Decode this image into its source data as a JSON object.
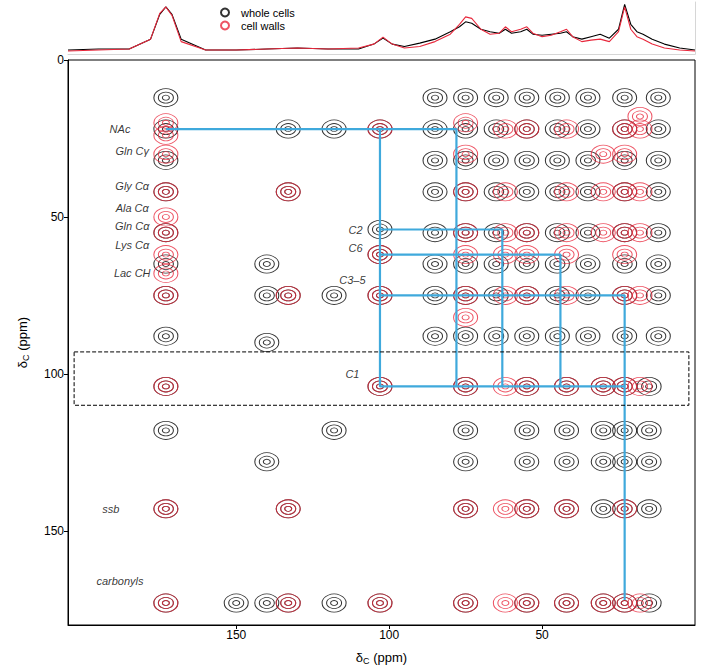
{
  "chart_data": [
    {
      "type": "line",
      "x": [
        205,
        195,
        185,
        178,
        175,
        173,
        171,
        168,
        160,
        150,
        140,
        130,
        120,
        110,
        105,
        102,
        99,
        95,
        90,
        85,
        80,
        77,
        75,
        73,
        70,
        67,
        64,
        62,
        60,
        57,
        55,
        53,
        50,
        47,
        44,
        42,
        40,
        37,
        34,
        31,
        28,
        25,
        23,
        21,
        19,
        17,
        14,
        10,
        5,
        0
      ],
      "series": [
        {
          "name": "whole cells",
          "color": "#000000",
          "values": [
            0.08,
            0.1,
            0.1,
            0.3,
            0.8,
            0.95,
            0.8,
            0.3,
            0.08,
            0.08,
            0.1,
            0.12,
            0.1,
            0.1,
            0.2,
            0.32,
            0.2,
            0.15,
            0.22,
            0.3,
            0.45,
            0.55,
            0.65,
            0.62,
            0.5,
            0.45,
            0.42,
            0.5,
            0.42,
            0.45,
            0.5,
            0.4,
            0.38,
            0.4,
            0.42,
            0.45,
            0.35,
            0.3,
            0.35,
            0.4,
            0.32,
            0.5,
            1.0,
            0.6,
            0.45,
            0.4,
            0.3,
            0.2,
            0.12,
            0.08
          ]
        },
        {
          "name": "cell walls",
          "color": "#e8283c",
          "values": [
            0.06,
            0.08,
            0.1,
            0.3,
            0.82,
            0.95,
            0.78,
            0.25,
            0.08,
            0.08,
            0.1,
            0.12,
            0.1,
            0.12,
            0.2,
            0.34,
            0.2,
            0.12,
            0.15,
            0.25,
            0.4,
            0.6,
            0.75,
            0.72,
            0.5,
            0.4,
            0.42,
            0.55,
            0.45,
            0.5,
            0.55,
            0.42,
            0.35,
            0.38,
            0.45,
            0.5,
            0.35,
            0.25,
            0.28,
            0.3,
            0.25,
            0.45,
            0.95,
            0.5,
            0.35,
            0.3,
            0.2,
            0.12,
            0.08,
            0.06
          ]
        }
      ],
      "xlim": [
        205,
        0
      ],
      "xticks": [],
      "ylim": [
        0,
        1.05
      ],
      "yticks": [],
      "legend": "top-left",
      "tick_labels": false
    },
    {
      "type": "scatter",
      "x_label": "δC (ppm)",
      "y_label": "δC (ppm)",
      "xlim": [
        205,
        0
      ],
      "xticks": [
        150,
        100,
        50
      ],
      "ylim": [
        180,
        0
      ],
      "yticks": [
        0,
        50,
        100,
        150
      ],
      "series": [
        {
          "name": "whole cells",
          "color": "#000000",
          "values": [
            [
              173,
              12
            ],
            [
              173,
              22
            ],
            [
              173,
              32
            ],
            [
              173,
              42
            ],
            [
              173,
              55
            ],
            [
              173,
              65
            ],
            [
              173,
              75
            ],
            [
              173,
              88
            ],
            [
              173,
              104
            ],
            [
              173,
              118
            ],
            [
              173,
              143
            ],
            [
              173,
              173
            ],
            [
              150,
              173
            ],
            [
              140,
              65
            ],
            [
              140,
              75
            ],
            [
              140,
              90
            ],
            [
              140,
              128
            ],
            [
              140,
              173
            ],
            [
              133,
              22
            ],
            [
              133,
              42
            ],
            [
              133,
              75
            ],
            [
              133,
              143
            ],
            [
              133,
              173
            ],
            [
              118,
              22
            ],
            [
              118,
              75
            ],
            [
              118,
              118
            ],
            [
              118,
              173
            ],
            [
              103,
              22
            ],
            [
              103,
              54
            ],
            [
              103,
              62
            ],
            [
              103,
              75
            ],
            [
              103,
              104
            ],
            [
              103,
              173
            ],
            [
              85,
              12
            ],
            [
              85,
              22
            ],
            [
              85,
              32
            ],
            [
              85,
              42
            ],
            [
              85,
              55
            ],
            [
              85,
              65
            ],
            [
              85,
              75
            ],
            [
              85,
              88
            ],
            [
              75,
              12
            ],
            [
              75,
              22
            ],
            [
              75,
              32
            ],
            [
              75,
              42
            ],
            [
              75,
              55
            ],
            [
              75,
              65
            ],
            [
              75,
              75
            ],
            [
              75,
              88
            ],
            [
              65,
              12
            ],
            [
              65,
              22
            ],
            [
              65,
              32
            ],
            [
              65,
              42
            ],
            [
              65,
              55
            ],
            [
              65,
              65
            ],
            [
              65,
              75
            ],
            [
              65,
              88
            ],
            [
              55,
              12
            ],
            [
              55,
              22
            ],
            [
              55,
              32
            ],
            [
              55,
              42
            ],
            [
              55,
              55
            ],
            [
              55,
              65
            ],
            [
              55,
              75
            ],
            [
              55,
              88
            ],
            [
              45,
              12
            ],
            [
              45,
              22
            ],
            [
              45,
              32
            ],
            [
              45,
              42
            ],
            [
              45,
              55
            ],
            [
              45,
              65
            ],
            [
              45,
              75
            ],
            [
              45,
              88
            ],
            [
              35,
              12
            ],
            [
              35,
              22
            ],
            [
              35,
              32
            ],
            [
              35,
              42
            ],
            [
              35,
              55
            ],
            [
              35,
              65
            ],
            [
              35,
              75
            ],
            [
              35,
              88
            ],
            [
              23,
              12
            ],
            [
              23,
              22
            ],
            [
              23,
              32
            ],
            [
              23,
              42
            ],
            [
              23,
              55
            ],
            [
              23,
              65
            ],
            [
              23,
              75
            ],
            [
              23,
              88
            ],
            [
              12,
              12
            ],
            [
              12,
              22
            ],
            [
              12,
              32
            ],
            [
              12,
              42
            ],
            [
              12,
              55
            ],
            [
              12,
              65
            ],
            [
              12,
              75
            ],
            [
              12,
              88
            ],
            [
              75,
              104
            ],
            [
              55,
              104
            ],
            [
              42,
              104
            ],
            [
              30,
              104
            ],
            [
              23,
              104
            ],
            [
              15,
              104
            ],
            [
              75,
              118
            ],
            [
              55,
              118
            ],
            [
              42,
              118
            ],
            [
              30,
              118
            ],
            [
              23,
              118
            ],
            [
              15,
              118
            ],
            [
              75,
              128
            ],
            [
              55,
              128
            ],
            [
              42,
              128
            ],
            [
              30,
              128
            ],
            [
              23,
              128
            ],
            [
              15,
              128
            ],
            [
              75,
              143
            ],
            [
              55,
              143
            ],
            [
              42,
              143
            ],
            [
              30,
              143
            ],
            [
              23,
              143
            ],
            [
              15,
              143
            ],
            [
              75,
              173
            ],
            [
              55,
              173
            ],
            [
              42,
              173
            ],
            [
              30,
              173
            ],
            [
              23,
              173
            ],
            [
              15,
              173
            ]
          ]
        },
        {
          "name": "cell walls",
          "color": "#e8283c",
          "values": [
            [
              173,
              20
            ],
            [
              173,
              24
            ],
            [
              173,
              30
            ],
            [
              173,
              42
            ],
            [
              173,
              50
            ],
            [
              173,
              55
            ],
            [
              173,
              62
            ],
            [
              173,
              68
            ],
            [
              173,
              75
            ],
            [
              173,
              104
            ],
            [
              173,
              143
            ],
            [
              173,
              173
            ],
            [
              133,
              42
            ],
            [
              133,
              75
            ],
            [
              133,
              143
            ],
            [
              133,
              173
            ],
            [
              103,
              22
            ],
            [
              103,
              62
            ],
            [
              103,
              75
            ],
            [
              103,
              104
            ],
            [
              103,
              173
            ],
            [
              75,
              20
            ],
            [
              75,
              30
            ],
            [
              75,
              42
            ],
            [
              75,
              55
            ],
            [
              75,
              62
            ],
            [
              75,
              75
            ],
            [
              75,
              82
            ],
            [
              75,
              104
            ],
            [
              75,
              143
            ],
            [
              75,
              173
            ],
            [
              62,
              22
            ],
            [
              62,
              42
            ],
            [
              62,
              55
            ],
            [
              62,
              62
            ],
            [
              62,
              75
            ],
            [
              62,
              104
            ],
            [
              62,
              143
            ],
            [
              62,
              173
            ],
            [
              55,
              22
            ],
            [
              55,
              55
            ],
            [
              55,
              62
            ],
            [
              55,
              75
            ],
            [
              55,
              104
            ],
            [
              55,
              143
            ],
            [
              55,
              173
            ],
            [
              42,
              22
            ],
            [
              42,
              42
            ],
            [
              42,
              55
            ],
            [
              42,
              62
            ],
            [
              42,
              75
            ],
            [
              42,
              104
            ],
            [
              42,
              143
            ],
            [
              42,
              173
            ],
            [
              30,
              30
            ],
            [
              30,
              42
            ],
            [
              30,
              55
            ],
            [
              30,
              104
            ],
            [
              30,
              173
            ],
            [
              23,
              22
            ],
            [
              23,
              30
            ],
            [
              23,
              42
            ],
            [
              23,
              55
            ],
            [
              23,
              62
            ],
            [
              23,
              75
            ],
            [
              23,
              104
            ],
            [
              23,
              143
            ],
            [
              23,
              173
            ],
            [
              18,
              18
            ],
            [
              18,
              22
            ],
            [
              18,
              42
            ],
            [
              18,
              55
            ],
            [
              18,
              75
            ],
            [
              18,
              104
            ],
            [
              18,
              173
            ]
          ]
        }
      ],
      "annotations": [
        {
          "text": "NAc",
          "x": 188,
          "y": 22
        },
        {
          "text": "Gln Cγ",
          "x": 184,
          "y": 29
        },
        {
          "text": "Gly Cα",
          "x": 184,
          "y": 40
        },
        {
          "text": "Ala Cα",
          "x": 184,
          "y": 47
        },
        {
          "text": "Gln Cα",
          "x": 184,
          "y": 53
        },
        {
          "text": "Lys Cα",
          "x": 184,
          "y": 59
        },
        {
          "text": "Lac CH",
          "x": 184,
          "y": 68
        },
        {
          "text": "C2",
          "x": 111,
          "y": 54
        },
        {
          "text": "C6",
          "x": 111,
          "y": 60
        },
        {
          "text": "C3–5",
          "x": 112,
          "y": 70
        },
        {
          "text": "C1",
          "x": 112,
          "y": 100
        },
        {
          "text": "ssb",
          "x": 191,
          "y": 143
        },
        {
          "text": "carbonyls",
          "x": 188,
          "y": 166
        }
      ],
      "paths": {
        "color": "#3fa9dc",
        "lines": [
          [
            [
              173,
              22
            ],
            [
              78,
              22
            ],
            [
              78,
              104
            ]
          ],
          [
            [
              103,
              22
            ],
            [
              103,
              104
            ],
            [
              23,
              104
            ]
          ],
          [
            [
              103,
              54
            ],
            [
              63,
              54
            ],
            [
              63,
              104
            ]
          ],
          [
            [
              103,
              62
            ],
            [
              44,
              62
            ],
            [
              44,
              104
            ]
          ],
          [
            [
              103,
              75
            ],
            [
              23,
              75
            ],
            [
              23,
              172
            ]
          ]
        ]
      },
      "c1_box": {
        "x": [
          203,
          2
        ],
        "y": [
          93,
          110
        ],
        "line_style": "dashed"
      }
    }
  ]
}
